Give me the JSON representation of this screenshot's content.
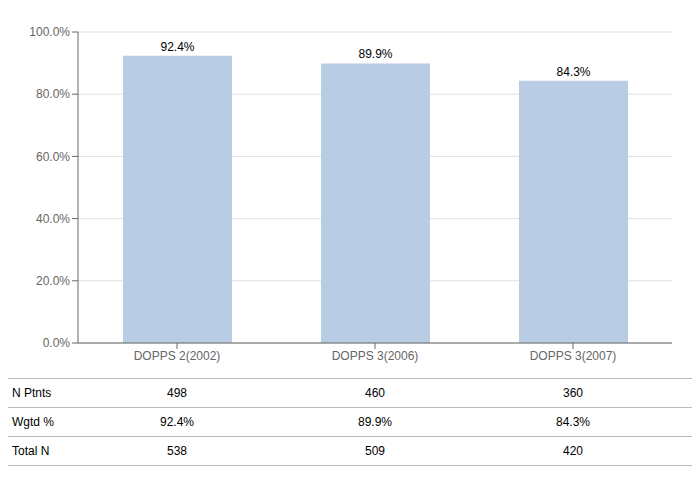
{
  "chart_data": {
    "type": "bar",
    "categories": [
      "DOPPS 2(2002)",
      "DOPPS 3(2006)",
      "DOPPS 3(2007)"
    ],
    "values": [
      92.4,
      89.9,
      84.3
    ],
    "value_labels": [
      "92.4%",
      "89.9%",
      "84.3%"
    ],
    "data_labels": true,
    "color": "#b8cce4",
    "ylim": [
      0,
      100
    ],
    "yticks": [
      {
        "value": 0,
        "label": "0.0%"
      },
      {
        "value": 20,
        "label": "20.0%"
      },
      {
        "value": 40,
        "label": "40.0%"
      },
      {
        "value": 60,
        "label": "60.0%"
      },
      {
        "value": 80,
        "label": "80.0%"
      },
      {
        "value": 100,
        "label": "100.0%"
      }
    ],
    "grid": true,
    "table_row_labels": [
      "N Ptnts",
      "Wgtd %",
      "Total N"
    ],
    "table_data": [
      [
        "498",
        "460",
        "360"
      ],
      [
        "92.4%",
        "89.9%",
        "84.3%"
      ],
      [
        "538",
        "509",
        "420"
      ]
    ]
  }
}
